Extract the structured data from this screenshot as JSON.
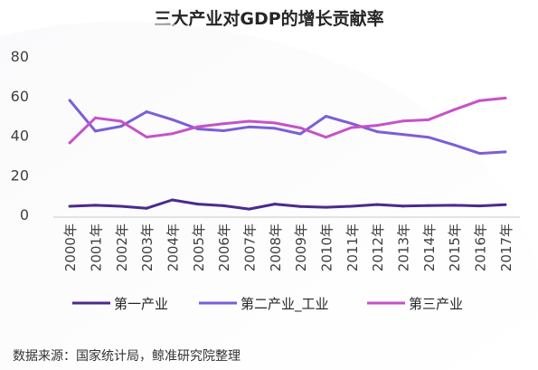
{
  "chart_data": {
    "type": "line",
    "title": "三大产业对GDP的增长贡献率",
    "categories": [
      "2000年",
      "2001年",
      "2002年",
      "2003年",
      "2004年",
      "2005年",
      "2006年",
      "2007年",
      "2008年",
      "2009年",
      "2010年",
      "2011年",
      "2012年",
      "2013年",
      "2014年",
      "2015年",
      "2016年",
      "2017年"
    ],
    "series": [
      {
        "name": "第一产业",
        "color": "#4b2a8c",
        "values": [
          4.1,
          4.6,
          4.1,
          3.1,
          7.3,
          5.2,
          4.4,
          2.7,
          5.2,
          4.0,
          3.6,
          4.1,
          5.0,
          4.2,
          4.5,
          4.6,
          4.3,
          4.9
        ]
      },
      {
        "name": "第二产业_工业",
        "color": "#7b5fd6",
        "values": [
          57.6,
          42.1,
          44.5,
          51.9,
          47.9,
          43.2,
          42.3,
          44.2,
          43.5,
          40.7,
          49.6,
          45.9,
          41.8,
          40.4,
          39.0,
          35.1,
          30.8,
          31.6
        ]
      },
      {
        "name": "第三产业",
        "color": "#c652c9",
        "values": [
          36.2,
          48.8,
          47.1,
          39.1,
          40.8,
          44.3,
          45.8,
          47.1,
          46.2,
          43.7,
          39.0,
          43.9,
          45.0,
          47.2,
          47.8,
          52.9,
          57.5,
          58.8
        ]
      }
    ],
    "ylim": [
      0,
      80
    ],
    "yticks": [
      0,
      20,
      40,
      60,
      80
    ],
    "grid": false,
    "legend": "bottom"
  },
  "source_note": "数据来源：国家统计局，鲸准研究院整理"
}
